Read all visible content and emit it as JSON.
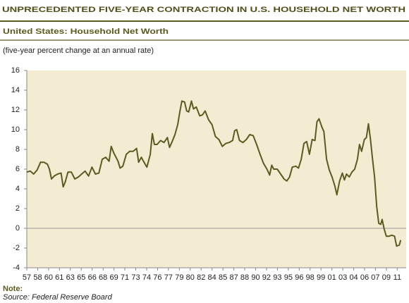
{
  "chart_data": {
    "type": "line",
    "title": "UNPRECEDENTED FIVE-YEAR CONTRACTION IN U.S. HOUSEHOLD NET WORTH",
    "subtitle": "United States: Household Net Worth",
    "y_label": "(five-year percent change at an annual rate)",
    "note": "Note:",
    "source": "Source: Federal Reserve Board",
    "x": [
      1957,
      1957.5,
      1958,
      1958.5,
      1959,
      1959.5,
      1960,
      1960.3,
      1960.6,
      1961,
      1961.5,
      1962,
      1962.3,
      1962.6,
      1963,
      1963.5,
      1964,
      1964.5,
      1965,
      1965.5,
      1966,
      1966.5,
      1967,
      1967.5,
      1968,
      1968.5,
      1969,
      1969.3,
      1969.7,
      1970.3,
      1970.6,
      1971,
      1971.5,
      1972,
      1972.5,
      1973,
      1973.3,
      1973.7,
      1974,
      1974.5,
      1975,
      1975.3,
      1975.6,
      1976,
      1976.5,
      1977,
      1977.5,
      1977.8,
      1978.2,
      1978.6,
      1979,
      1979.3,
      1979.6,
      1980,
      1980.3,
      1980.6,
      1981,
      1981.3,
      1981.7,
      1982.2,
      1982.6,
      1983,
      1983.5,
      1984,
      1984.5,
      1985,
      1985.5,
      1986,
      1986.5,
      1987,
      1987.3,
      1987.6,
      1988,
      1988.5,
      1989,
      1989.5,
      1990,
      1990.5,
      1991,
      1991.5,
      1992,
      1992.4,
      1992.7,
      1993,
      1993.5,
      1994,
      1994.5,
      1994.9,
      1995.3,
      1995.7,
      1996.2,
      1996.6,
      1997,
      1997.4,
      1997.8,
      1998.2,
      1998.6,
      1999,
      1999.3,
      1999.6,
      2000,
      2000.3,
      2000.7,
      2001.1,
      2001.5,
      2001.9,
      2002.2,
      2002.6,
      2003,
      2003.3,
      2003.6,
      2004,
      2004.4,
      2004.8,
      2005.2,
      2005.5,
      2005.8,
      2006.2,
      2006.5,
      2006.8,
      2007.1,
      2007.4,
      2007.7,
      2008,
      2008.3,
      2008.6,
      2008.8,
      2009.1,
      2009.4,
      2009.8,
      2010.2,
      2010.6,
      2010.9,
      2011.3,
      2011.5
    ],
    "series": [
      {
        "color": "#5b5b1f",
        "values": [
          5.7,
          5.8,
          5.5,
          5.9,
          6.7,
          6.7,
          6.5,
          6.0,
          5.0,
          5.3,
          5.5,
          5.6,
          4.2,
          4.7,
          5.7,
          5.7,
          5.0,
          5.2,
          5.5,
          5.8,
          5.3,
          6.2,
          5.5,
          5.6,
          7.0,
          7.2,
          6.8,
          8.3,
          7.6,
          6.8,
          6.1,
          6.3,
          7.5,
          7.8,
          7.8,
          8.1,
          6.7,
          7.2,
          6.8,
          6.2,
          7.5,
          9.6,
          8.5,
          8.5,
          8.9,
          8.7,
          9.2,
          8.2,
          8.8,
          9.5,
          10.5,
          11.8,
          12.9,
          12.8,
          11.9,
          11.8,
          12.9,
          12.1,
          12.3,
          11.4,
          11.5,
          11.9,
          11.0,
          10.5,
          9.3,
          9.0,
          8.3,
          8.6,
          8.7,
          8.9,
          9.9,
          10.0,
          8.9,
          8.7,
          9.0,
          9.5,
          9.4,
          8.5,
          7.5,
          6.6,
          6.0,
          5.4,
          6.4,
          6.0,
          6.0,
          5.5,
          5.0,
          4.8,
          5.2,
          6.2,
          6.3,
          6.1,
          7.0,
          8.6,
          8.8,
          7.5,
          9.0,
          8.9,
          10.8,
          11.1,
          10.3,
          9.8,
          7.0,
          5.9,
          5.2,
          4.3,
          3.4,
          4.8,
          5.6,
          4.9,
          5.5,
          5.2,
          5.7,
          6.0,
          7.0,
          8.5,
          7.8,
          9.0,
          9.2,
          10.6,
          9.0,
          7.0,
          5.2,
          2.2,
          0.5,
          0.4,
          0.9,
          -0.1,
          -0.8,
          -0.8,
          -0.7,
          -0.8,
          -1.8,
          -1.7,
          -1.2
        ]
      }
    ],
    "xlim": [
      1957,
      2012.3
    ],
    "ylim": [
      -4,
      16
    ],
    "yticks": [
      -4,
      -2,
      0,
      2,
      4,
      6,
      8,
      10,
      12,
      14,
      16
    ],
    "xticks": [
      {
        "value": 1957,
        "label": "57"
      },
      {
        "value": 1958.59,
        "label": "58"
      },
      {
        "value": 1960.18,
        "label": "60"
      },
      {
        "value": 1961.76,
        "label": "61"
      },
      {
        "value": 1963.35,
        "label": "63"
      },
      {
        "value": 1964.94,
        "label": "65"
      },
      {
        "value": 1966.53,
        "label": "66"
      },
      {
        "value": 1968.12,
        "label": "68"
      },
      {
        "value": 1969.71,
        "label": "69"
      },
      {
        "value": 1971.29,
        "label": "71"
      },
      {
        "value": 1972.88,
        "label": "73"
      },
      {
        "value": 1974.47,
        "label": "74"
      },
      {
        "value": 1976.06,
        "label": "76"
      },
      {
        "value": 1977.65,
        "label": "77"
      },
      {
        "value": 1979.24,
        "label": "79"
      },
      {
        "value": 1980.82,
        "label": "80"
      },
      {
        "value": 1982.41,
        "label": "82"
      },
      {
        "value": 1984,
        "label": "84"
      },
      {
        "value": 1985.59,
        "label": "85"
      },
      {
        "value": 1987.18,
        "label": "87"
      },
      {
        "value": 1988.76,
        "label": "88"
      },
      {
        "value": 1990.35,
        "label": "90"
      },
      {
        "value": 1991.94,
        "label": "92"
      },
      {
        "value": 1993.53,
        "label": "93"
      },
      {
        "value": 1995.12,
        "label": "95"
      },
      {
        "value": 1996.71,
        "label": "96"
      },
      {
        "value": 1998.29,
        "label": "98"
      },
      {
        "value": 1999.88,
        "label": "99"
      },
      {
        "value": 2001.47,
        "label": "01"
      },
      {
        "value": 2003.06,
        "label": "03"
      },
      {
        "value": 2004.65,
        "label": "04"
      },
      {
        "value": 2006.24,
        "label": "06"
      },
      {
        "value": 2007.82,
        "label": "07"
      },
      {
        "value": 2009.41,
        "label": "09"
      },
      {
        "value": 2011,
        "label": "11"
      }
    ],
    "zero_line": true
  }
}
